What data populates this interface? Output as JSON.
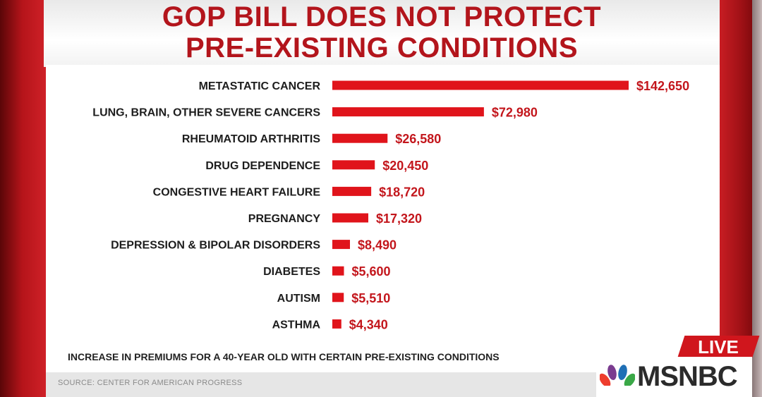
{
  "title": {
    "line1": "GOP BILL DOES NOT PROTECT",
    "line2": "PRE-EXISTING CONDITIONS"
  },
  "subtitle": "INCREASE IN PREMIUMS FOR A 40-YEAR OLD WITH CERTAIN PRE-EXISTING CONDITIONS",
  "source": "SOURCE: CENTER FOR AMERICAN PROGRESS",
  "broadcast": {
    "live_label": "LIVE",
    "network": "MSNBC",
    "logo_icon": "peacock-icon"
  },
  "colors": {
    "bar": "#e0141b",
    "value_text": "#c3161c",
    "title_text": "#b3151c",
    "live_bg": "#d0161d"
  },
  "chart_data": {
    "type": "bar",
    "orientation": "horizontal",
    "categories": [
      "METASTATIC CANCER",
      "LUNG, BRAIN, OTHER SEVERE CANCERS",
      "RHEUMATOID ARTHRITIS",
      "DRUG DEPENDENCE",
      "CONGESTIVE HEART FAILURE",
      "PREGNANCY",
      "DEPRESSION & BIPOLAR DISORDERS",
      "DIABETES",
      "AUTISM",
      "ASTHMA"
    ],
    "values": [
      142650,
      72980,
      26580,
      20450,
      18720,
      17320,
      8490,
      5600,
      5510,
      4340
    ],
    "value_labels": [
      "$142,650",
      "$72,980",
      "$26,580",
      "$20,450",
      "$18,720",
      "$17,320",
      "$8,490",
      "$5,600",
      "$5,510",
      "$4,340"
    ],
    "xlim": [
      0,
      142650
    ],
    "grid": false,
    "legend": "none"
  }
}
